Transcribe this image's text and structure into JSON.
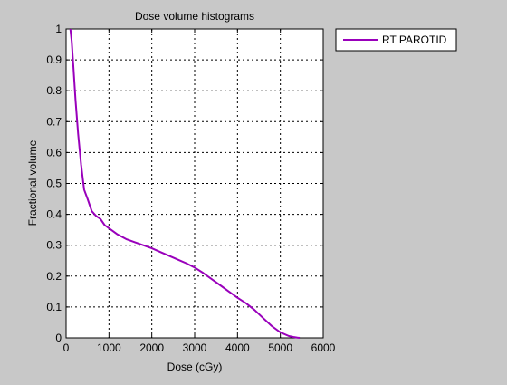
{
  "window": {
    "background": "#c8c8c8"
  },
  "chart_data": {
    "type": "line",
    "title": "Dose volume histograms",
    "xlabel": "Dose (cGy)",
    "ylabel": "Fractional volume",
    "xlim": [
      0,
      6000
    ],
    "ylim": [
      0,
      1
    ],
    "xticks": [
      "0",
      "1000",
      "2000",
      "3000",
      "4000",
      "5000",
      "6000"
    ],
    "yticks": [
      "0",
      "0.1",
      "0.2",
      "0.3",
      "0.4",
      "0.5",
      "0.6",
      "0.7",
      "0.8",
      "0.9",
      "1"
    ],
    "grid": true,
    "legend": {
      "placement": "outside-top-right"
    },
    "series": [
      {
        "name": "RT PAROTID",
        "color": "#9900bb",
        "x": [
          100,
          130,
          170,
          220,
          280,
          350,
          420,
          500,
          600,
          700,
          800,
          900,
          1000,
          1200,
          1400,
          1600,
          1800,
          2000,
          2200,
          2400,
          2600,
          2800,
          3000,
          3200,
          3400,
          3600,
          3800,
          4000,
          4200,
          4400,
          4600,
          4800,
          5000,
          5200,
          5300,
          5400,
          5450
        ],
        "y": [
          1.0,
          0.96,
          0.88,
          0.77,
          0.66,
          0.56,
          0.48,
          0.45,
          0.41,
          0.395,
          0.385,
          0.365,
          0.355,
          0.335,
          0.32,
          0.31,
          0.3,
          0.29,
          0.278,
          0.266,
          0.254,
          0.242,
          0.228,
          0.21,
          0.19,
          0.17,
          0.15,
          0.13,
          0.112,
          0.09,
          0.064,
          0.038,
          0.018,
          0.006,
          0.003,
          0.001,
          0.0
        ]
      }
    ]
  }
}
